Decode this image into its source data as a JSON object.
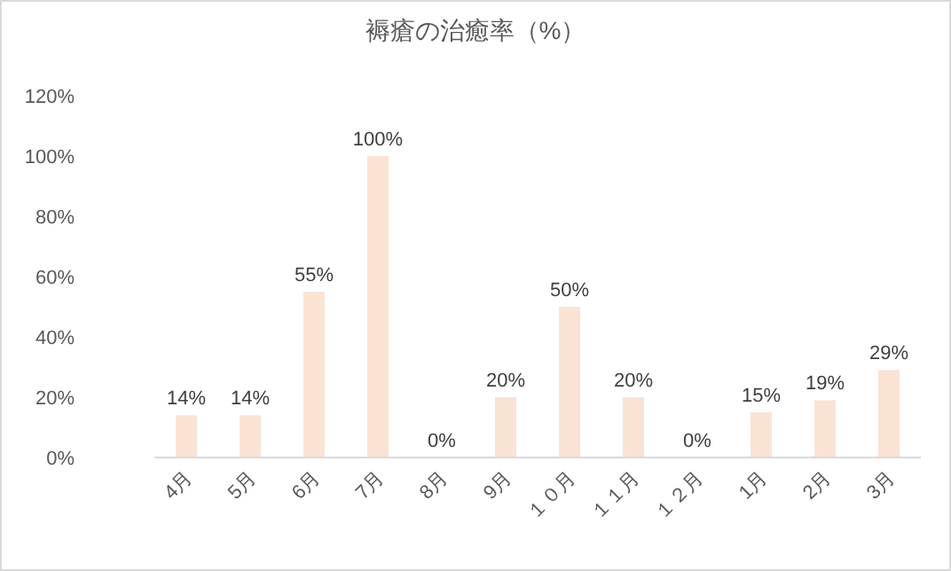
{
  "chart_data": {
    "type": "bar",
    "title": "褥瘡の治癒率（%）",
    "categories": [
      "4月",
      "5月",
      "6月",
      "7月",
      "8月",
      "9月",
      "１０月",
      "１１月",
      "１２月",
      "1月",
      "2月",
      "3月"
    ],
    "values": [
      14,
      14,
      55,
      100,
      0,
      20,
      50,
      20,
      0,
      15,
      19,
      29
    ],
    "value_labels": [
      "14%",
      "14%",
      "55%",
      "100%",
      "0%",
      "20%",
      "50%",
      "20%",
      "0%",
      "15%",
      "19%",
      "29%"
    ],
    "color": "#fbe3d4",
    "ylim": [
      0,
      120
    ],
    "yticks": [
      {
        "value": 0,
        "label": "0%"
      },
      {
        "value": 20,
        "label": "20%"
      },
      {
        "value": 40,
        "label": "40%"
      },
      {
        "value": 60,
        "label": "60%"
      },
      {
        "value": 80,
        "label": "80%"
      },
      {
        "value": 100,
        "label": "100%"
      },
      {
        "value": 120,
        "label": "120%"
      }
    ]
  }
}
